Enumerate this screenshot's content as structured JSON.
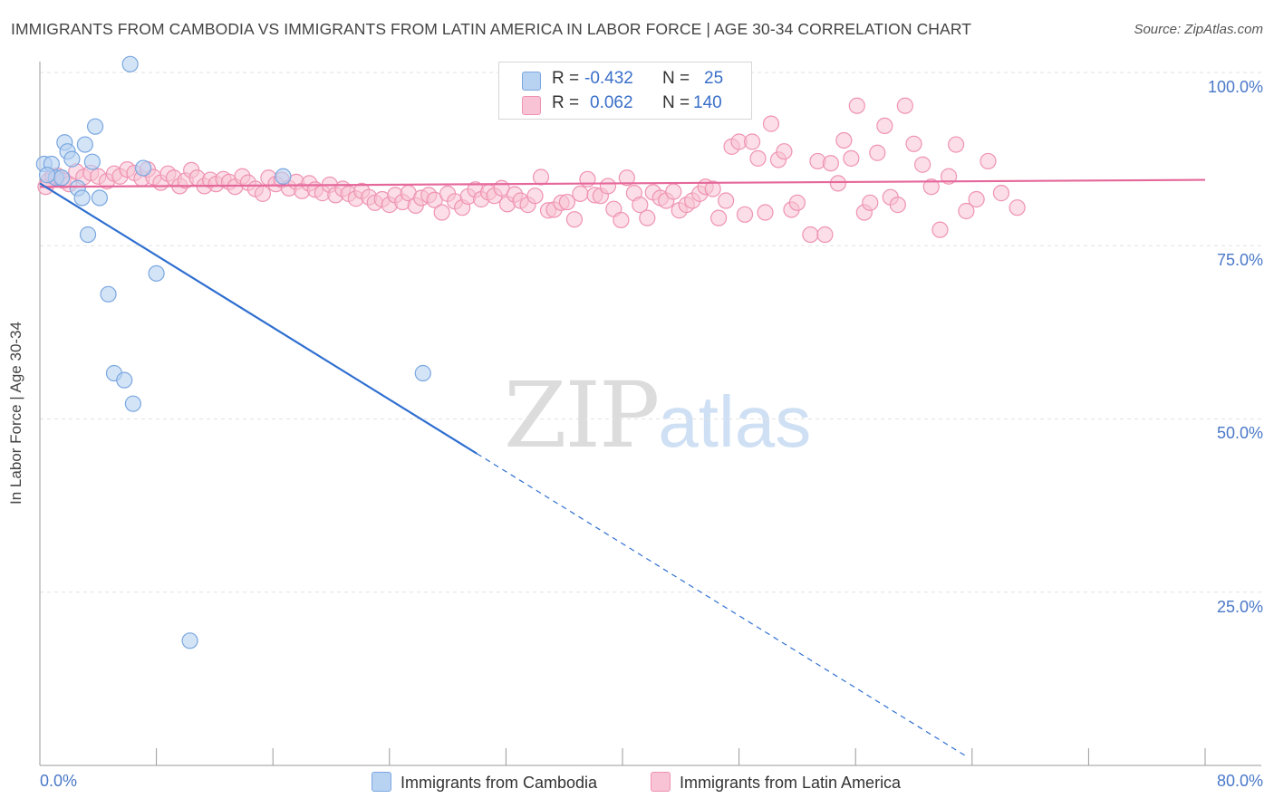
{
  "title": "IMMIGRANTS FROM CAMBODIA VS IMMIGRANTS FROM LATIN AMERICA IN LABOR FORCE | AGE 30-34 CORRELATION CHART",
  "source": "Source: ZipAtlas.com",
  "watermark": {
    "zip": "ZIP",
    "atlas": "atlas"
  },
  "legend_top": {
    "rows": [
      {
        "r_label": "R =",
        "r_value": "-0.432",
        "n_label": "N =",
        "n_value": "25"
      },
      {
        "r_label": "R =",
        "r_value": "0.062",
        "n_label": "N =",
        "n_value": "140"
      }
    ]
  },
  "colors": {
    "cambodia_fill": "#b8d2f2",
    "cambodia_stroke": "#7aa7e0",
    "cambodia_line": "#2f6fd0",
    "latin_fill": "#f8c3d4",
    "latin_stroke": "#ef93b2",
    "latin_line": "#e5689a",
    "tick_text": "#4a78c8",
    "grid": "#e2e2e2"
  },
  "chart_data": {
    "type": "scatter",
    "title": "IMMIGRANTS FROM CAMBODIA VS IMMIGRANTS FROM LATIN AMERICA IN LABOR FORCE | AGE 30-34 CORRELATION CHART",
    "xlabel": "",
    "ylabel": "In Labor Force | Age 30-34",
    "xlim": [
      0,
      80
    ],
    "ylim": [
      0,
      100
    ],
    "x_tick_labels": [
      "0.0%",
      "80.0%"
    ],
    "y_tick_labels": [
      "100.0%",
      "75.0%",
      "50.0%",
      "25.0%"
    ],
    "y_ticks": [
      100,
      75,
      50,
      25
    ],
    "grid": true,
    "legend_position": "bottom",
    "series": [
      {
        "name": "Immigrants from Cambodia",
        "r": -0.432,
        "n": 25,
        "trend": {
          "x0": 0.0,
          "y0": 84.0,
          "x1": 30.0,
          "y1": 45.0,
          "dash_to_x": 63.5
        },
        "points": [
          [
            6.2,
            101.2
          ],
          [
            0.3,
            86.8
          ],
          [
            0.8,
            86.8
          ],
          [
            1.1,
            84.8
          ],
          [
            1.5,
            84.8
          ],
          [
            1.7,
            89.9
          ],
          [
            1.9,
            88.6
          ],
          [
            2.2,
            87.5
          ],
          [
            2.6,
            83.3
          ],
          [
            2.9,
            81.9
          ],
          [
            3.1,
            89.6
          ],
          [
            3.3,
            76.6
          ],
          [
            3.6,
            87.1
          ],
          [
            3.8,
            92.2
          ],
          [
            4.1,
            81.9
          ],
          [
            4.7,
            68.0
          ],
          [
            5.1,
            56.6
          ],
          [
            5.8,
            55.6
          ],
          [
            6.4,
            52.2
          ],
          [
            7.1,
            86.2
          ],
          [
            8.0,
            71.0
          ],
          [
            10.3,
            18.0
          ],
          [
            16.7,
            85.0
          ],
          [
            26.3,
            56.6
          ],
          [
            0.5,
            85.2
          ]
        ]
      },
      {
        "name": "Immigrants from Latin America",
        "r": 0.062,
        "n": 140,
        "trend": {
          "x0": 0.0,
          "y0": 83.5,
          "x1": 80.0,
          "y1": 84.5
        },
        "points": [
          [
            0.4,
            83.5
          ],
          [
            0.6,
            84.4
          ],
          [
            0.9,
            85.0
          ],
          [
            1.2,
            85.1
          ],
          [
            1.6,
            84.4
          ],
          [
            2.0,
            83.9
          ],
          [
            2.5,
            85.7
          ],
          [
            3.0,
            84.9
          ],
          [
            3.5,
            85.5
          ],
          [
            4.0,
            85.0
          ],
          [
            4.6,
            84.3
          ],
          [
            5.1,
            85.4
          ],
          [
            5.5,
            85.0
          ],
          [
            6.0,
            86.0
          ],
          [
            6.5,
            85.5
          ],
          [
            7.0,
            84.7
          ],
          [
            7.4,
            86.0
          ],
          [
            7.8,
            84.9
          ],
          [
            8.3,
            84.1
          ],
          [
            8.8,
            85.4
          ],
          [
            9.2,
            84.8
          ],
          [
            9.6,
            83.6
          ],
          [
            10.0,
            84.4
          ],
          [
            10.4,
            85.9
          ],
          [
            10.8,
            84.8
          ],
          [
            11.3,
            83.6
          ],
          [
            11.7,
            84.5
          ],
          [
            12.1,
            83.9
          ],
          [
            12.6,
            84.6
          ],
          [
            13.0,
            84.2
          ],
          [
            13.4,
            83.5
          ],
          [
            13.9,
            85.0
          ],
          [
            14.3,
            84.1
          ],
          [
            14.8,
            83.2
          ],
          [
            15.3,
            82.5
          ],
          [
            15.7,
            84.8
          ],
          [
            16.2,
            83.9
          ],
          [
            16.6,
            84.5
          ],
          [
            17.1,
            83.3
          ],
          [
            17.6,
            84.2
          ],
          [
            18.0,
            82.9
          ],
          [
            18.5,
            84.0
          ],
          [
            18.9,
            83.1
          ],
          [
            19.4,
            82.6
          ],
          [
            19.9,
            83.8
          ],
          [
            20.3,
            82.3
          ],
          [
            20.8,
            83.2
          ],
          [
            21.2,
            82.5
          ],
          [
            21.7,
            81.8
          ],
          [
            22.1,
            82.9
          ],
          [
            22.6,
            82.0
          ],
          [
            23.0,
            81.2
          ],
          [
            23.5,
            81.7
          ],
          [
            24.0,
            80.9
          ],
          [
            24.4,
            82.3
          ],
          [
            24.9,
            81.3
          ],
          [
            25.3,
            82.6
          ],
          [
            25.8,
            80.8
          ],
          [
            26.2,
            81.9
          ],
          [
            26.7,
            82.3
          ],
          [
            27.1,
            81.6
          ],
          [
            27.6,
            79.8
          ],
          [
            28.0,
            82.5
          ],
          [
            28.5,
            81.4
          ],
          [
            29.0,
            80.5
          ],
          [
            29.4,
            82.1
          ],
          [
            29.9,
            83.1
          ],
          [
            30.3,
            81.7
          ],
          [
            30.8,
            82.7
          ],
          [
            31.2,
            82.2
          ],
          [
            31.7,
            83.3
          ],
          [
            32.1,
            81.0
          ],
          [
            32.6,
            82.4
          ],
          [
            33.0,
            81.5
          ],
          [
            33.5,
            80.9
          ],
          [
            34.0,
            82.2
          ],
          [
            34.4,
            84.9
          ],
          [
            34.9,
            80.1
          ],
          [
            35.3,
            80.2
          ],
          [
            35.8,
            81.2
          ],
          [
            36.2,
            81.3
          ],
          [
            36.7,
            78.8
          ],
          [
            37.1,
            82.5
          ],
          [
            37.6,
            84.6
          ],
          [
            38.1,
            82.3
          ],
          [
            38.5,
            82.2
          ],
          [
            39.0,
            83.6
          ],
          [
            39.4,
            80.3
          ],
          [
            39.9,
            78.7
          ],
          [
            40.3,
            84.8
          ],
          [
            40.8,
            82.6
          ],
          [
            41.2,
            80.9
          ],
          [
            41.7,
            79.0
          ],
          [
            42.1,
            82.7
          ],
          [
            42.6,
            81.9
          ],
          [
            43.0,
            81.5
          ],
          [
            43.5,
            82.8
          ],
          [
            43.9,
            80.1
          ],
          [
            44.4,
            80.9
          ],
          [
            44.8,
            81.5
          ],
          [
            45.3,
            82.5
          ],
          [
            45.7,
            83.5
          ],
          [
            46.2,
            83.2
          ],
          [
            46.6,
            79.0
          ],
          [
            47.1,
            81.5
          ],
          [
            47.5,
            89.3
          ],
          [
            48.0,
            90.0
          ],
          [
            48.4,
            79.5
          ],
          [
            48.9,
            90.0
          ],
          [
            49.3,
            87.6
          ],
          [
            49.8,
            79.8
          ],
          [
            50.2,
            92.6
          ],
          [
            50.7,
            87.4
          ],
          [
            51.1,
            88.6
          ],
          [
            51.6,
            80.2
          ],
          [
            52.0,
            81.2
          ],
          [
            52.9,
            76.6
          ],
          [
            53.4,
            87.2
          ],
          [
            53.9,
            76.6
          ],
          [
            54.3,
            86.9
          ],
          [
            54.8,
            84.0
          ],
          [
            55.2,
            90.2
          ],
          [
            55.7,
            87.6
          ],
          [
            56.1,
            95.2
          ],
          [
            56.6,
            79.8
          ],
          [
            57.0,
            81.2
          ],
          [
            57.5,
            88.4
          ],
          [
            58.0,
            92.3
          ],
          [
            58.4,
            82.0
          ],
          [
            58.9,
            80.9
          ],
          [
            59.4,
            95.2
          ],
          [
            60.0,
            89.7
          ],
          [
            60.6,
            86.7
          ],
          [
            61.2,
            83.5
          ],
          [
            61.8,
            77.3
          ],
          [
            62.4,
            85.0
          ],
          [
            62.9,
            89.6
          ],
          [
            63.6,
            80.0
          ],
          [
            64.3,
            81.7
          ],
          [
            65.1,
            87.2
          ],
          [
            66.0,
            82.6
          ],
          [
            67.1,
            80.5
          ]
        ]
      }
    ]
  },
  "bottom_legend": {
    "cambodia": "Immigrants from Cambodia",
    "latin": "Immigrants from Latin America"
  }
}
